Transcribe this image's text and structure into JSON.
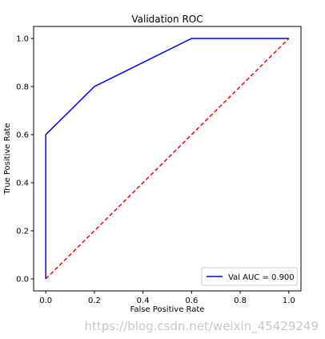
{
  "chart_data": {
    "type": "line",
    "title": "Validation ROC",
    "xlabel": "False Positive Rate",
    "ylabel": "True Positive Rate",
    "xlim": [
      -0.05,
      1.05
    ],
    "ylim": [
      -0.05,
      1.05
    ],
    "xticks": [
      "0.0",
      "0.2",
      "0.4",
      "0.6",
      "0.8",
      "1.0"
    ],
    "yticks": [
      "0.0",
      "0.2",
      "0.4",
      "0.6",
      "0.8",
      "1.0"
    ],
    "grid": false,
    "legend_position": "lower-right",
    "series": [
      {
        "name": "Val AUC = 0.900",
        "color": "#0000ff",
        "style": "solid",
        "x": [
          0.0,
          0.0,
          0.2,
          0.6,
          1.0
        ],
        "y": [
          0.0,
          0.6,
          0.8,
          1.0,
          1.0
        ]
      },
      {
        "color": "#ff0000",
        "style": "dashed",
        "x": [
          0.0,
          1.0
        ],
        "y": [
          0.0,
          1.0
        ]
      }
    ]
  },
  "watermark": "https://blog.csdn.net/weixin_45429249"
}
